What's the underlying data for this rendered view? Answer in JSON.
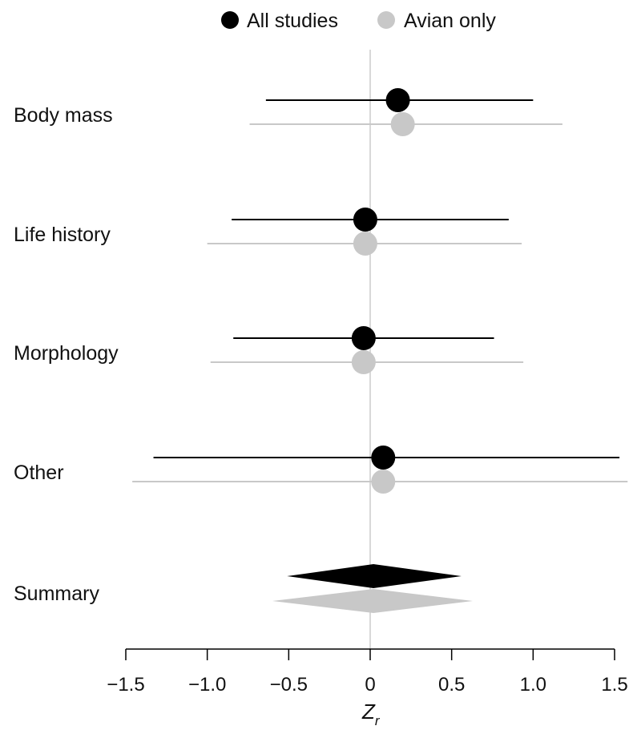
{
  "chart_data": {
    "type": "forest",
    "categories": [
      "Body mass",
      "Life history",
      "Morphology",
      "Other"
    ],
    "summary_label": "Summary",
    "xlabel": "Z",
    "xlabel_subscript": "r",
    "xlim": [
      -1.5,
      1.5
    ],
    "xticks": [
      "−1.5",
      "−1.0",
      "−0.5",
      "0",
      "0.5",
      "1.0",
      "1.5"
    ],
    "xtick_values": [
      -1.5,
      -1.0,
      -0.5,
      0,
      0.5,
      1.0,
      1.5
    ],
    "legend_position": "top-center",
    "series": [
      {
        "name": "All studies",
        "color": "#000000",
        "line_color": "#000000",
        "points": [
          {
            "estimate": 0.17,
            "lower": -0.64,
            "upper": 1.0
          },
          {
            "estimate": -0.03,
            "lower": -0.85,
            "upper": 0.85
          },
          {
            "estimate": -0.04,
            "lower": -0.84,
            "upper": 0.76
          },
          {
            "estimate": 0.08,
            "lower": -1.33,
            "upper": 1.53
          }
        ],
        "summary": {
          "estimate": 0.02,
          "lower": -0.51,
          "upper": 0.56
        }
      },
      {
        "name": "Avian only",
        "color": "#c8c8c8",
        "line_color": "#c8c8c8",
        "points": [
          {
            "estimate": 0.2,
            "lower": -0.74,
            "upper": 1.18
          },
          {
            "estimate": -0.03,
            "lower": -1.0,
            "upper": 0.93
          },
          {
            "estimate": -0.04,
            "lower": -0.98,
            "upper": 0.94
          },
          {
            "estimate": 0.08,
            "lower": -1.46,
            "upper": 1.58
          }
        ],
        "summary": {
          "estimate": 0.02,
          "lower": -0.6,
          "upper": 0.63
        }
      }
    ]
  }
}
